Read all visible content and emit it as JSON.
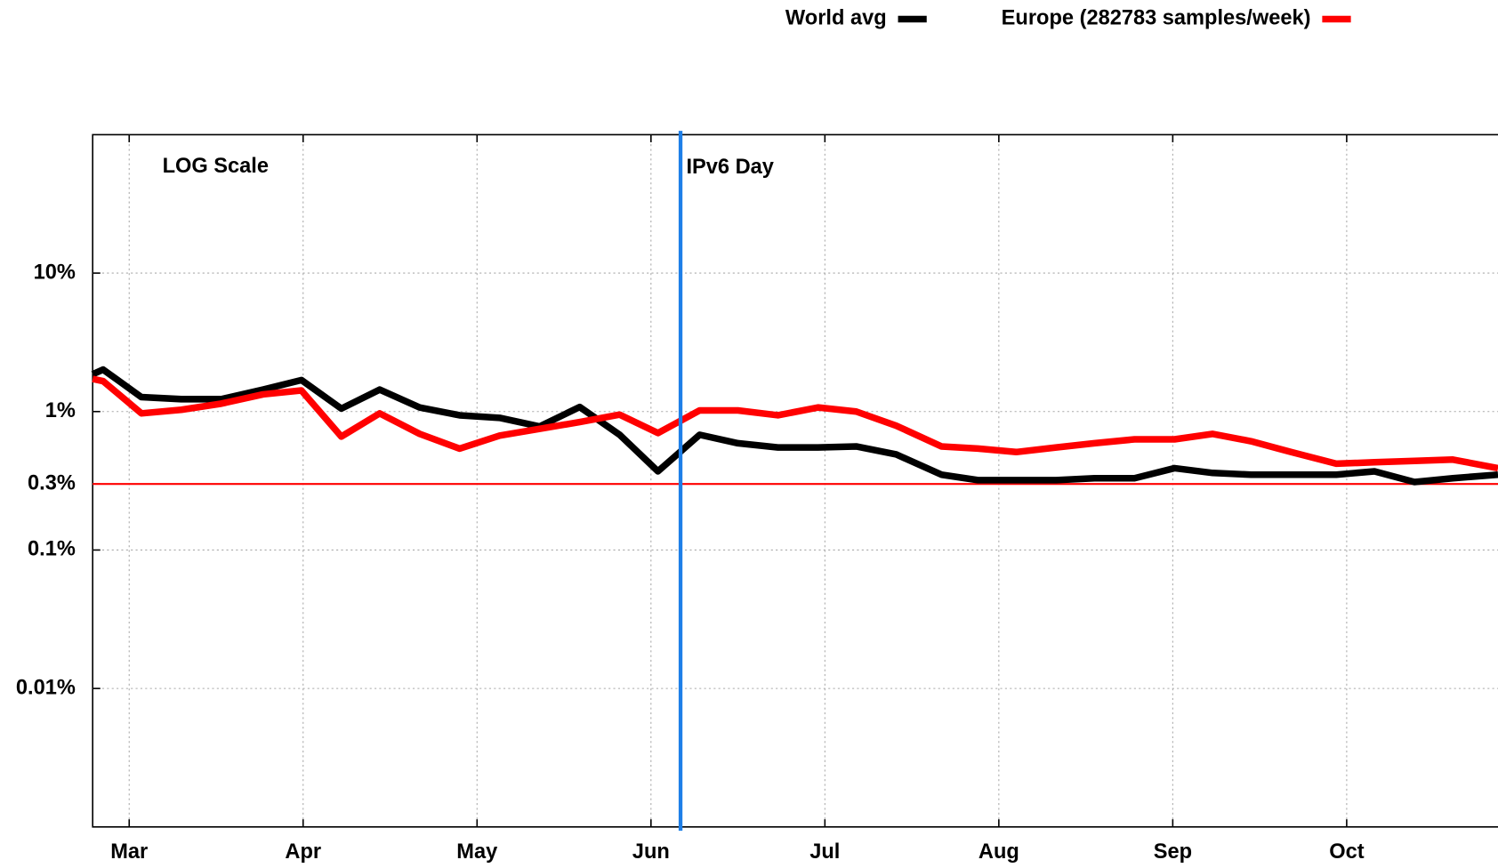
{
  "chart_data": {
    "type": "line",
    "annotations": {
      "corner_note": "LOG Scale"
    },
    "vline": {
      "x": 6.17,
      "label": "IPv6 Day",
      "color": "#1e7fe8"
    },
    "hline": {
      "value": 0.3,
      "color": "#ff0000"
    },
    "x": [
      2.79,
      2.85,
      3.07,
      3.3,
      3.53,
      3.77,
      3.99,
      4.22,
      4.44,
      4.67,
      4.9,
      5.13,
      5.36,
      5.59,
      5.82,
      6.04,
      6.28,
      6.5,
      6.73,
      6.96,
      7.18,
      7.41,
      7.67,
      7.88,
      8.1,
      8.33,
      8.55,
      8.78,
      9.01,
      9.23,
      9.45,
      9.68,
      9.94,
      10.16,
      10.39,
      10.61,
      10.87
    ],
    "series": [
      {
        "name": "World avg",
        "color": "#000000",
        "values": [
          1.86,
          2.01,
          1.27,
          1.23,
          1.23,
          1.44,
          1.69,
          1.05,
          1.44,
          1.07,
          0.94,
          0.9,
          0.78,
          1.08,
          0.68,
          0.37,
          0.68,
          0.59,
          0.55,
          0.55,
          0.56,
          0.49,
          0.35,
          0.32,
          0.32,
          0.32,
          0.33,
          0.33,
          0.39,
          0.36,
          0.35,
          0.35,
          0.35,
          0.37,
          0.31,
          0.33,
          0.35
        ]
      },
      {
        "name": "Europe (282783 samples/week)",
        "color": "#ff0000",
        "values": [
          1.72,
          1.66,
          0.97,
          1.03,
          1.14,
          1.33,
          1.42,
          0.66,
          0.97,
          0.69,
          0.54,
          0.67,
          0.75,
          0.84,
          0.95,
          0.7,
          1.02,
          1.02,
          0.94,
          1.07,
          1.0,
          0.79,
          0.56,
          0.54,
          0.51,
          0.55,
          0.59,
          0.63,
          0.63,
          0.69,
          0.61,
          0.51,
          0.42,
          0.43,
          0.44,
          0.45,
          0.39
        ]
      }
    ],
    "xlim": [
      2.79,
      10.87
    ],
    "xticks": [
      {
        "value": 3,
        "label": "Mar"
      },
      {
        "value": 4,
        "label": "Apr"
      },
      {
        "value": 5,
        "label": "May"
      },
      {
        "value": 6,
        "label": "Jun"
      },
      {
        "value": 7,
        "label": "Jul"
      },
      {
        "value": 8,
        "label": "Aug"
      },
      {
        "value": 9,
        "label": "Sep"
      },
      {
        "value": 10,
        "label": "Oct"
      }
    ],
    "ylim": [
      0.001,
      100
    ],
    "yticks": [
      {
        "value": 10,
        "label": "10%"
      },
      {
        "value": 1,
        "label": "1%"
      },
      {
        "value": 0.3,
        "label": "0.3%"
      },
      {
        "value": 0.1,
        "label": "0.1%"
      },
      {
        "value": 0.01,
        "label": "0.01%"
      }
    ],
    "log_scale": true,
    "grid": true,
    "legend": "top"
  }
}
